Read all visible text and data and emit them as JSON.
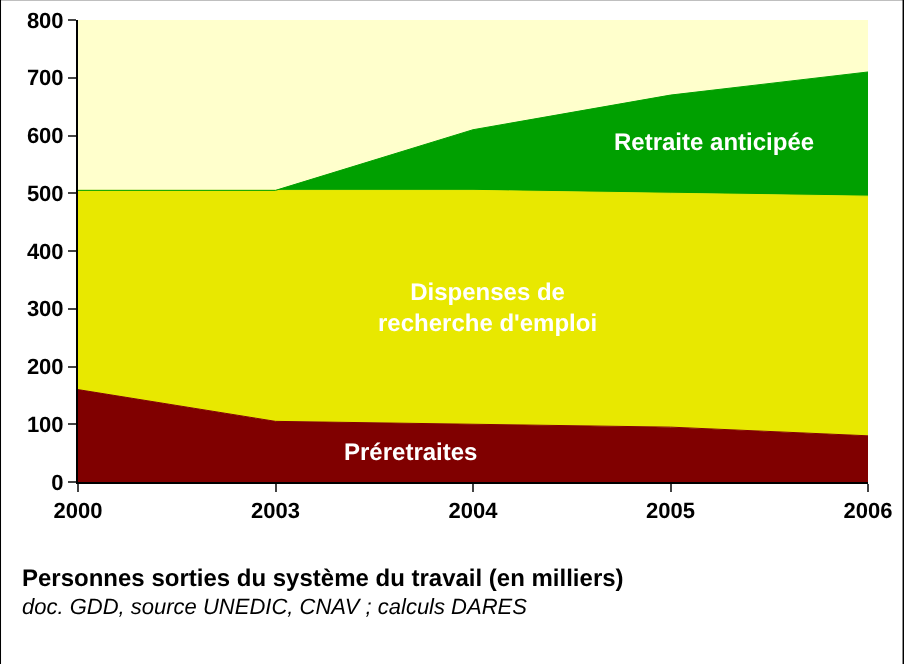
{
  "chart_data": {
    "type": "area",
    "stacked": true,
    "title": "Personnes sorties du système du travail (en milliers)",
    "annotations": [
      "doc. GDD, source UNEDIC, CNAV ; calculs DARES"
    ],
    "categories": [
      "2000",
      "2003",
      "2004",
      "2005",
      "2006"
    ],
    "series": [
      {
        "name": "Préretraites",
        "color": "#800000",
        "values": [
          160,
          105,
          100,
          95,
          80
        ]
      },
      {
        "name": "Dispenses de recherche d'emploi",
        "color": "#e8e800",
        "values": [
          345,
          400,
          405,
          405,
          415
        ]
      },
      {
        "name": "Retraite anticipée",
        "color": "#00a000",
        "values": [
          0,
          0,
          105,
          170,
          215
        ]
      }
    ],
    "bands": [
      {
        "axis": "y",
        "from": 500,
        "to": 800,
        "color": "#ffffcc"
      }
    ],
    "ylim": [
      0,
      800
    ],
    "yticks": [
      0,
      100,
      200,
      300,
      400,
      500,
      600,
      700,
      800
    ],
    "grid": false,
    "legend": false
  }
}
